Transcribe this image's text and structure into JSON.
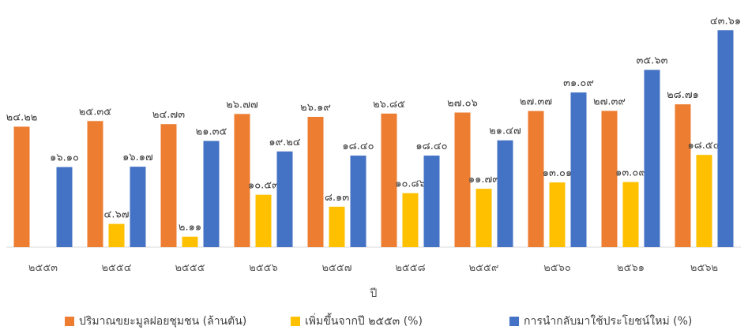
{
  "chart_data": {
    "type": "bar",
    "title": "",
    "xlabel": "ปี",
    "ylabel": "",
    "categories": [
      "๒๕๕๓",
      "๒๕๕๔",
      "๒๕๕๕",
      "๒๕๕๖",
      "๒๕๕๗",
      "๒๕๕๘",
      "๒๕๕๙",
      "๒๕๖๐",
      "๒๕๖๑",
      "๒๕๖๒"
    ],
    "series": [
      {
        "name": "ปริมาณขยะมูลฝอยชุมชน (ล้านตัน)",
        "color": "#ED7D31",
        "values": [
          24.22,
          25.35,
          24.73,
          26.77,
          26.19,
          26.85,
          27.06,
          27.37,
          27.39,
          28.71
        ],
        "labels": [
          "๒๔.๒๒",
          "๒๕.๓๕",
          "๒๔.๗๓",
          "๒๖.๗๗",
          "๒๖.๑๙",
          "๒๖.๘๕",
          "๒๗.๐๖",
          "๒๗.๓๗",
          "๒๗.๓๙",
          "๒๘.๗๑"
        ]
      },
      {
        "name": "เพิ่มขึ้นจากปี ๒๕๕๓ (%)",
        "color": "#FFC000",
        "values": [
          null,
          4.67,
          2.11,
          10.53,
          8.13,
          10.86,
          11.73,
          13.01,
          13.09,
          18.54
        ],
        "labels": [
          "",
          "๔.๖๗",
          "๒.๑๑",
          "๑๐.๕๓",
          "๘.๑๓",
          "๑๐.๘๖",
          "๑๑.๗๓",
          "๑๓.๐๑",
          "๑๓.๐๙",
          "๑๘.๕๔"
        ]
      },
      {
        "name": "การนำกลับมาใช้ประโยชน์ใหม่ (%)",
        "color": "#4472C4",
        "values": [
          16.1,
          16.17,
          21.35,
          19.24,
          18.4,
          18.4,
          21.47,
          31.09,
          35.63,
          43.61
        ],
        "labels": [
          "๑๖.๑๐",
          "๑๖.๑๗",
          "๒๑.๓๕",
          "๑๙.๒๔",
          "๑๘.๔๐",
          "๑๘.๔๐",
          "๒๑.๔๗",
          "๓๑.๐๙",
          "๓๕.๖๓",
          "๔๓.๖๑"
        ]
      }
    ],
    "ylim": [
      0,
      45
    ],
    "grid": false,
    "legend_position": "bottom"
  }
}
